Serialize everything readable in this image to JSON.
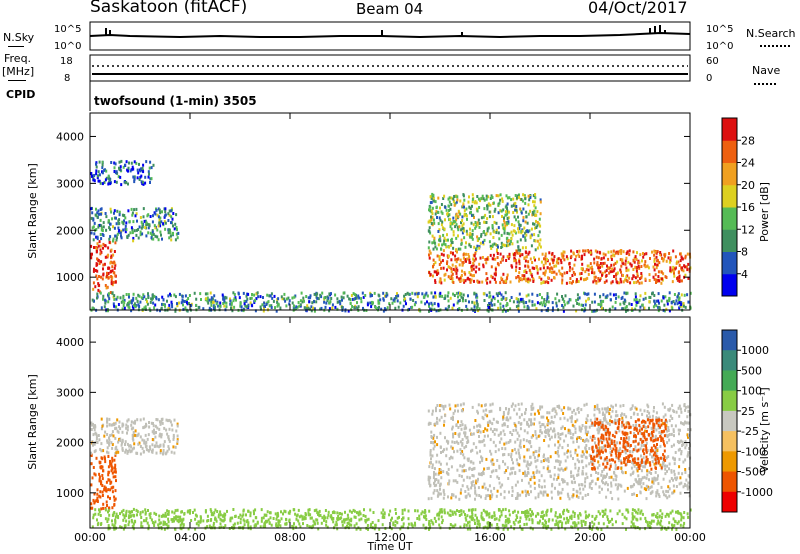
{
  "header": {
    "site": "Saskatoon (fitACF)",
    "beam": "Beam 04",
    "date": "04/Oct/2017"
  },
  "noise_panel": {
    "left_label": "N.Sky",
    "left_ticks": [
      "10^5",
      "10^0"
    ],
    "right_label": "N.Search",
    "right_ticks": [
      "10^5",
      "10^0"
    ]
  },
  "freq_panel": {
    "left_label_1": "Freq.",
    "left_label_2": "[MHz]",
    "left_ticks": [
      "18",
      "8"
    ],
    "right_label": "Nave",
    "right_ticks": [
      "60",
      "0"
    ]
  },
  "cpid": {
    "label": "CPID",
    "program": "twofsound (1-min) 3505"
  },
  "colors": {
    "power_scale": [
      "#0000ee",
      "#2255bb",
      "#3f8f5f",
      "#55bb55",
      "#ddd020",
      "#f0a020",
      "#ee6010",
      "#dd1010"
    ],
    "velocity_scale": [
      "#ee0000",
      "#ee5500",
      "#ee9900",
      "#f5c060",
      "#c8c8c0",
      "#88cc44",
      "#44aa55",
      "#3a8a7a",
      "#2a5aaa"
    ],
    "ground_scatter": "#c0c0b8"
  },
  "chart_data": [
    {
      "type": "heatmap",
      "name": "power",
      "xlabel": "",
      "ylabel": "Slant Range [km]",
      "x_range_hours": [
        0,
        24
      ],
      "ylim": [
        300,
        4500
      ],
      "yticks": [
        1000,
        2000,
        3000,
        4000
      ],
      "colorbar": {
        "label": "Power [dB]",
        "range": [
          0,
          32
        ],
        "ticks": [
          4,
          8,
          12,
          16,
          20,
          24,
          28
        ]
      },
      "scatter_regions": [
        {
          "t": [
            0.0,
            1.0
          ],
          "range": [
            700,
            1800
          ],
          "value": 28
        },
        {
          "t": [
            0.0,
            3.5
          ],
          "range": [
            1800,
            2500
          ],
          "value": 10
        },
        {
          "t": [
            0.0,
            2.5
          ],
          "range": [
            3000,
            3500
          ],
          "value": 6
        },
        {
          "t": [
            13.5,
            24.0
          ],
          "range": [
            900,
            1600
          ],
          "value": 26
        },
        {
          "t": [
            13.5,
            18.0
          ],
          "range": [
            1600,
            2800
          ],
          "value": 14
        },
        {
          "t": [
            0.0,
            24.0
          ],
          "range": [
            300,
            700
          ],
          "value": 10
        }
      ]
    },
    {
      "type": "heatmap",
      "name": "velocity",
      "xlabel": "Time UT",
      "ylabel": "Slant Range [km]",
      "x_range_hours": [
        0,
        24
      ],
      "xticks": [
        "00:00",
        "04:00",
        "08:00",
        "12:00",
        "16:00",
        "20:00",
        "00:00"
      ],
      "ylim": [
        300,
        4500
      ],
      "yticks": [
        1000,
        2000,
        3000,
        4000
      ],
      "colorbar": {
        "label": "Velocity [m s⁻¹]",
        "ticks": [
          "1000",
          "500",
          "100",
          "25",
          "-25",
          "-100",
          "-500",
          "-1000"
        ]
      },
      "scatter_regions": [
        {
          "t": [
            0.0,
            1.0
          ],
          "range": [
            700,
            1800
          ],
          "value": -300
        },
        {
          "t": [
            0.0,
            3.5
          ],
          "range": [
            1800,
            2500
          ],
          "value": 0
        },
        {
          "t": [
            13.5,
            24.0
          ],
          "range": [
            900,
            2800
          ],
          "value": 0
        },
        {
          "t": [
            20.0,
            23.0
          ],
          "range": [
            1500,
            2500
          ],
          "value": -300
        },
        {
          "t": [
            0.0,
            24.0
          ],
          "range": [
            300,
            700
          ],
          "value": 50
        }
      ]
    }
  ]
}
